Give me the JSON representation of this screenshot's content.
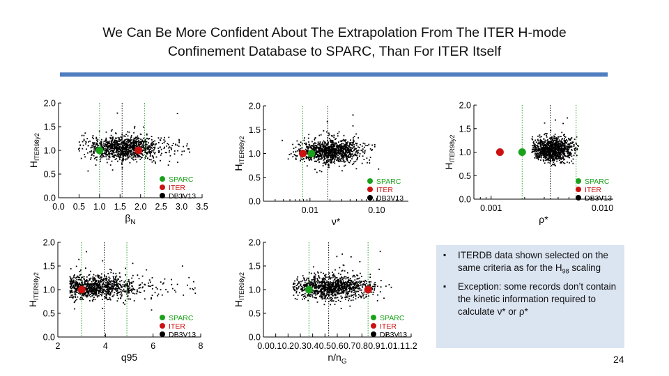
{
  "slide": {
    "title_line1": "We Can Be More Confident About The Extrapolation From The ITER H-mode",
    "title_line2": "Confinement Database to SPARC, Than For ITER Itself",
    "page_number": "24",
    "accent_color": "#4f7ec0"
  },
  "notes": {
    "bullet1_pre": "ITERDB data shown selected on the same criteria as for the H",
    "bullet1_sub": "98",
    "bullet1_post": " scaling",
    "bullet2": "Exception: some records don’t contain the kinetic information required to calculate ν* or ρ*"
  },
  "legend": {
    "sparc": "SPARC",
    "iter": "ITER",
    "db": "DB3V13",
    "sparc_color": "#1aa11a",
    "iter_color": "#cc1111",
    "db_color": "#000000"
  },
  "chart_data": [
    {
      "type": "scatter",
      "id": "beta",
      "xscale": "linear",
      "xlim": [
        0,
        3.5
      ],
      "ylim": [
        0,
        2
      ],
      "xticks": [
        "0.0",
        "0.5",
        "1.0",
        "1.5",
        "2.0",
        "2.5",
        "3.0",
        "3.5"
      ],
      "yticks": [
        "0.0",
        "0.5",
        "1.0",
        "1.5",
        "2.0"
      ],
      "xlabel": "β",
      "xlabel_sub": "N",
      "ylabel": "H",
      "ylabel_sub": "ITER98y2",
      "sparc": {
        "x": 1.0,
        "y": 1.0
      },
      "iter": {
        "x": 1.95,
        "y": 1.0
      },
      "vlines_green": [
        1.0,
        2.1
      ],
      "vlines_black": [
        1.55
      ],
      "cloud": {
        "center": 1.55,
        "spread": 0.45,
        "range": [
          0.45,
          3.25
        ],
        "tail": 0.1
      }
    },
    {
      "type": "scatter",
      "id": "nu",
      "xscale": "log",
      "xlim": [
        0.002,
        0.3
      ],
      "ylim": [
        0,
        2
      ],
      "xticks": [
        "0.01",
        "0.10"
      ],
      "xtick_values": [
        0.01,
        0.1
      ],
      "yticks": [
        "0.0",
        "0.5",
        "1.0",
        "1.5",
        "2.0"
      ],
      "xlabel": "ν*",
      "xlabel_sub": "",
      "ylabel": "H",
      "ylabel_sub": "ITER98y2",
      "sparc": {
        "x": 0.0105,
        "y": 1.0
      },
      "iter": {
        "x": 0.0078,
        "y": 1.0
      },
      "vlines_green": [
        0.0078
      ],
      "vlines_black": [
        0.0185
      ],
      "cloud": {
        "center": 0.02,
        "spread": 0.55,
        "range": [
          0.0035,
          0.25
        ],
        "tail": 0.05
      }
    },
    {
      "type": "scatter",
      "id": "rho",
      "xscale": "log",
      "xlim": [
        0.0007,
        0.0125
      ],
      "ylim": [
        0,
        2
      ],
      "xticks": [
        "0.001",
        "0.010"
      ],
      "xtick_values": [
        0.001,
        0.01
      ],
      "yticks": [
        "0.0",
        "0.5",
        "1.0",
        "1.5",
        "2.0"
      ],
      "xlabel": "ρ*",
      "xlabel_sub": "",
      "ylabel": "H",
      "ylabel_sub": "ITER98y2",
      "sparc": {
        "x": 0.0019,
        "y": 1.0
      },
      "iter": {
        "x": 0.0012,
        "y": 1.0
      },
      "vlines_green": [
        0.0019,
        0.0058
      ],
      "vlines_black": [
        0.0034
      ],
      "cloud": {
        "center": 0.0036,
        "spread": 0.22,
        "range": [
          0.0023,
          0.0062
        ],
        "tail": 0.02
      }
    },
    {
      "type": "scatter",
      "id": "q95",
      "xscale": "linear",
      "xlim": [
        2,
        8
      ],
      "ylim": [
        0,
        2
      ],
      "xticks": [
        "2",
        "4",
        "6",
        "8"
      ],
      "yticks": [
        "0.0",
        "0.5",
        "1.0",
        "1.5",
        "2.0"
      ],
      "xlabel": "q95",
      "xlabel_sub": "",
      "ylabel": "H",
      "ylabel_sub": "ITER98y2",
      "sparc": {
        "x": 3.0,
        "y": 1.0
      },
      "iter": {
        "x": 3.0,
        "y": 1.0
      },
      "vlines_green": [
        3.0,
        4.9
      ],
      "vlines_black": [
        3.95
      ],
      "cloud": {
        "center": 3.4,
        "spread": 0.9,
        "range": [
          2.5,
          7.8
        ],
        "tail": 0.12
      }
    },
    {
      "type": "scatter",
      "id": "greenwald",
      "xscale": "linear",
      "xlim": [
        0,
        1.2
      ],
      "ylim": [
        0,
        2
      ],
      "xticks": [
        "0.0",
        "0.1",
        "0.2",
        "0.3",
        "0.4",
        "0.5",
        "0.6",
        "0.7",
        "0.8",
        "0.9",
        "1.0",
        "1.1",
        "1.2"
      ],
      "yticks": [
        "0.0",
        "0.5",
        "1.0",
        "1.5",
        "2.0"
      ],
      "xlabel": "n/n",
      "xlabel_sub": "G",
      "ylabel": "H",
      "ylabel_sub": "ITER98y2",
      "sparc": {
        "x": 0.37,
        "y": 1.0
      },
      "iter": {
        "x": 0.85,
        "y": 1.0
      },
      "vlines_green": [
        0.37,
        0.85
      ],
      "vlines_black": [
        0.53
      ],
      "cloud": {
        "center": 0.55,
        "spread": 0.17,
        "range": [
          0.23,
          1.05
        ],
        "tail": 0.03
      }
    }
  ]
}
